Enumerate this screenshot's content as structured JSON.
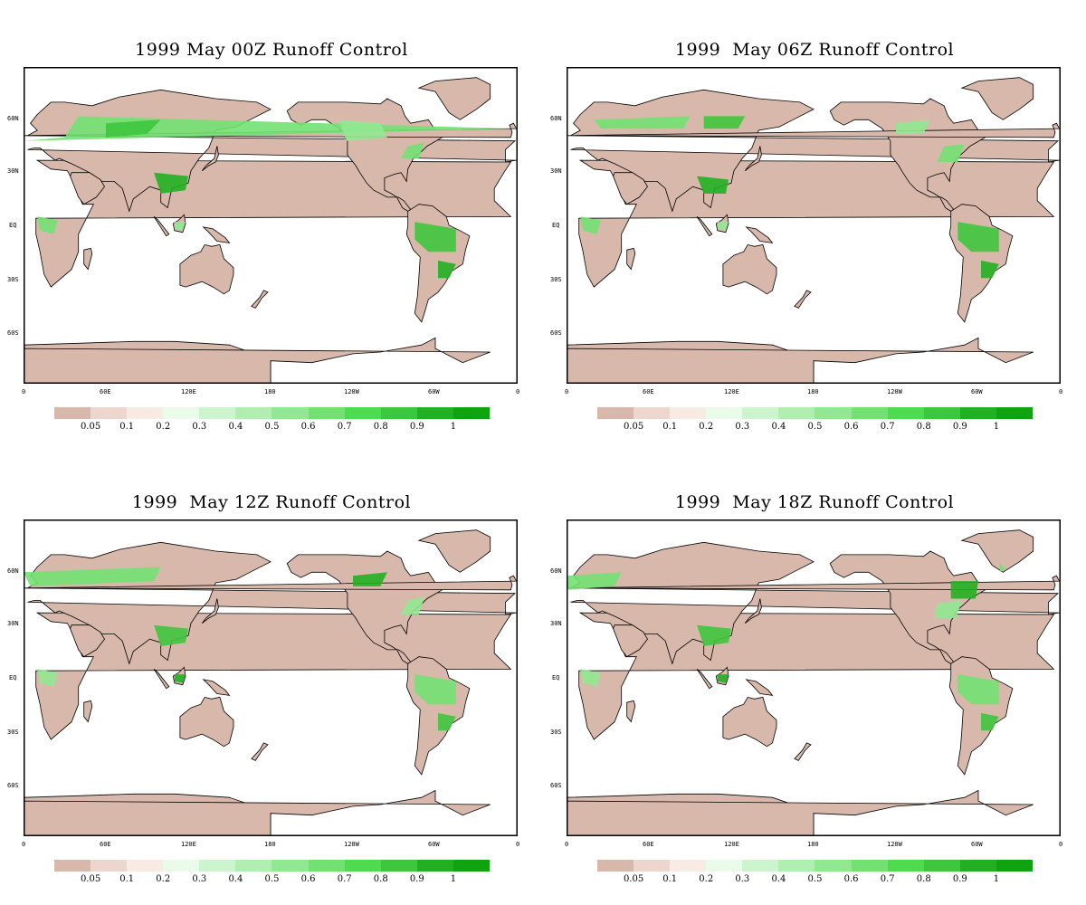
{
  "panels": [
    {
      "title": "1999 May 00Z Runoff Control"
    },
    {
      "title": "1999  May 06Z Runoff Control"
    },
    {
      "title": "1999  May 12Z Runoff Control"
    },
    {
      "title": "1999  May 18Z Runoff Control"
    }
  ],
  "axes": {
    "lat_labels": [
      "60N",
      "30N",
      "EQ",
      "30S",
      "60S"
    ],
    "lon_labels": [
      "0",
      "60E",
      "120E",
      "180",
      "120W",
      "60W",
      "0"
    ]
  },
  "colorbar": {
    "colors": [
      "#d9b8ac",
      "#ecd6cd",
      "#f7ebe4",
      "#eafbea",
      "#cdf5cd",
      "#b1efb1",
      "#91e891",
      "#72e172",
      "#4fdb4f",
      "#3ec73e",
      "#22b022",
      "#10a310"
    ],
    "labels": [
      "0.05",
      "0.1",
      "0.2",
      "0.3",
      "0.4",
      "0.5",
      "0.6",
      "0.7",
      "0.8",
      "0.9",
      "1"
    ]
  }
}
